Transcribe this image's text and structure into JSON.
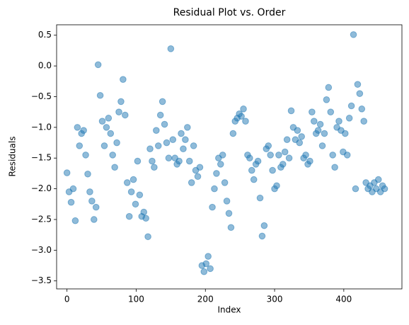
{
  "chart_data": {
    "type": "scatter",
    "title": "Residual Plot vs. Order",
    "x_label": "Index",
    "y_label": "Residuals",
    "color": "#1f77b4",
    "x": [
      0,
      3,
      6,
      9,
      12,
      15,
      18,
      21,
      24,
      27,
      30,
      33,
      36,
      39,
      42,
      45,
      48,
      51,
      54,
      57,
      60,
      63,
      66,
      69,
      72,
      75,
      78,
      81,
      84,
      87,
      90,
      93,
      96,
      99,
      102,
      105,
      108,
      111,
      114,
      117,
      120,
      123,
      126,
      129,
      132,
      135,
      138,
      141,
      144,
      147,
      150,
      153,
      156,
      159,
      162,
      165,
      168,
      171,
      174,
      177,
      180,
      183,
      186,
      189,
      192,
      195,
      198,
      201,
      204,
      207,
      210,
      213,
      216,
      219,
      222,
      225,
      228,
      231,
      234,
      237,
      240,
      243,
      246,
      249,
      252,
      255,
      258,
      261,
      264,
      267,
      270,
      273,
      276,
      279,
      282,
      285,
      288,
      291,
      294,
      297,
      300,
      303,
      306,
      309,
      312,
      315,
      318,
      321,
      324,
      327,
      330,
      333,
      336,
      339,
      342,
      345,
      348,
      351,
      354,
      357,
      360,
      363,
      366,
      369,
      372,
      375,
      378,
      381,
      384,
      387,
      390,
      393,
      396,
      399,
      402,
      405,
      408,
      411,
      414,
      417,
      420,
      423,
      426,
      429,
      432,
      435,
      438,
      441,
      444,
      447,
      450,
      453,
      456,
      459
    ],
    "y": [
      -1.74,
      -2.05,
      -2.22,
      -2.0,
      -2.52,
      -1.0,
      -1.3,
      -1.1,
      -1.05,
      -1.45,
      -1.76,
      -2.05,
      -2.2,
      -2.5,
      -2.3,
      0.02,
      -0.48,
      -0.9,
      -1.3,
      -1.0,
      -0.85,
      -1.1,
      -1.45,
      -1.65,
      -1.25,
      -0.75,
      -0.58,
      -0.22,
      -0.8,
      -1.9,
      -2.45,
      -2.05,
      -1.85,
      -2.25,
      -1.55,
      -2.1,
      -2.45,
      -2.38,
      -2.48,
      -2.78,
      -1.35,
      -1.55,
      -1.65,
      -1.05,
      -1.3,
      -0.8,
      -0.58,
      -0.95,
      -1.25,
      -1.5,
      0.28,
      -1.2,
      -1.5,
      -1.6,
      -1.55,
      -1.1,
      -1.35,
      -1.2,
      -1.0,
      -1.55,
      -1.9,
      -1.3,
      -1.7,
      -1.8,
      -1.65,
      -3.25,
      -3.35,
      -3.22,
      -3.1,
      -3.3,
      -2.3,
      -2.0,
      -1.75,
      -1.5,
      -1.6,
      -1.45,
      -1.9,
      -2.2,
      -2.4,
      -2.63,
      -1.1,
      -0.9,
      -0.85,
      -0.78,
      -0.82,
      -0.7,
      -0.9,
      -1.45,
      -1.5,
      -1.7,
      -1.85,
      -1.6,
      -1.55,
      -2.15,
      -2.77,
      -2.6,
      -1.35,
      -1.3,
      -1.45,
      -1.7,
      -2.0,
      -1.95,
      -1.45,
      -1.65,
      -1.6,
      -1.4,
      -1.2,
      -1.5,
      -0.73,
      -1.0,
      -1.2,
      -1.05,
      -1.25,
      -1.15,
      -1.5,
      -1.45,
      -1.6,
      -1.55,
      -0.75,
      -0.9,
      -1.1,
      -1.05,
      -0.95,
      -1.3,
      -1.1,
      -0.55,
      -0.35,
      -0.75,
      -1.45,
      -1.65,
      -1.0,
      -0.9,
      -1.05,
      -1.4,
      -1.1,
      -1.45,
      -0.85,
      -0.65,
      0.51,
      -2.0,
      -0.3,
      -0.45,
      -0.7,
      -0.9,
      -1.9,
      -2.0,
      -1.95,
      -2.05,
      -1.9,
      -2.0,
      -1.85,
      -2.05,
      -1.95,
      -2.0
    ],
    "xlim": [
      -15,
      484
    ],
    "ylim": [
      -3.63,
      0.67
    ],
    "xticks": [
      0,
      100,
      200,
      300,
      400
    ],
    "yticks": [
      {
        "value": -3.5,
        "label": "−3.5"
      },
      {
        "value": -3.0,
        "label": "−3.0"
      },
      {
        "value": -2.5,
        "label": "−2.5"
      },
      {
        "value": -2.0,
        "label": "−2.0"
      },
      {
        "value": -1.5,
        "label": "−1.5"
      },
      {
        "value": -1.0,
        "label": "−1.0"
      },
      {
        "value": -0.5,
        "label": "−0.5"
      },
      {
        "value": 0,
        "label": "0.0"
      },
      {
        "value": 0.5,
        "label": "0.5"
      }
    ]
  }
}
